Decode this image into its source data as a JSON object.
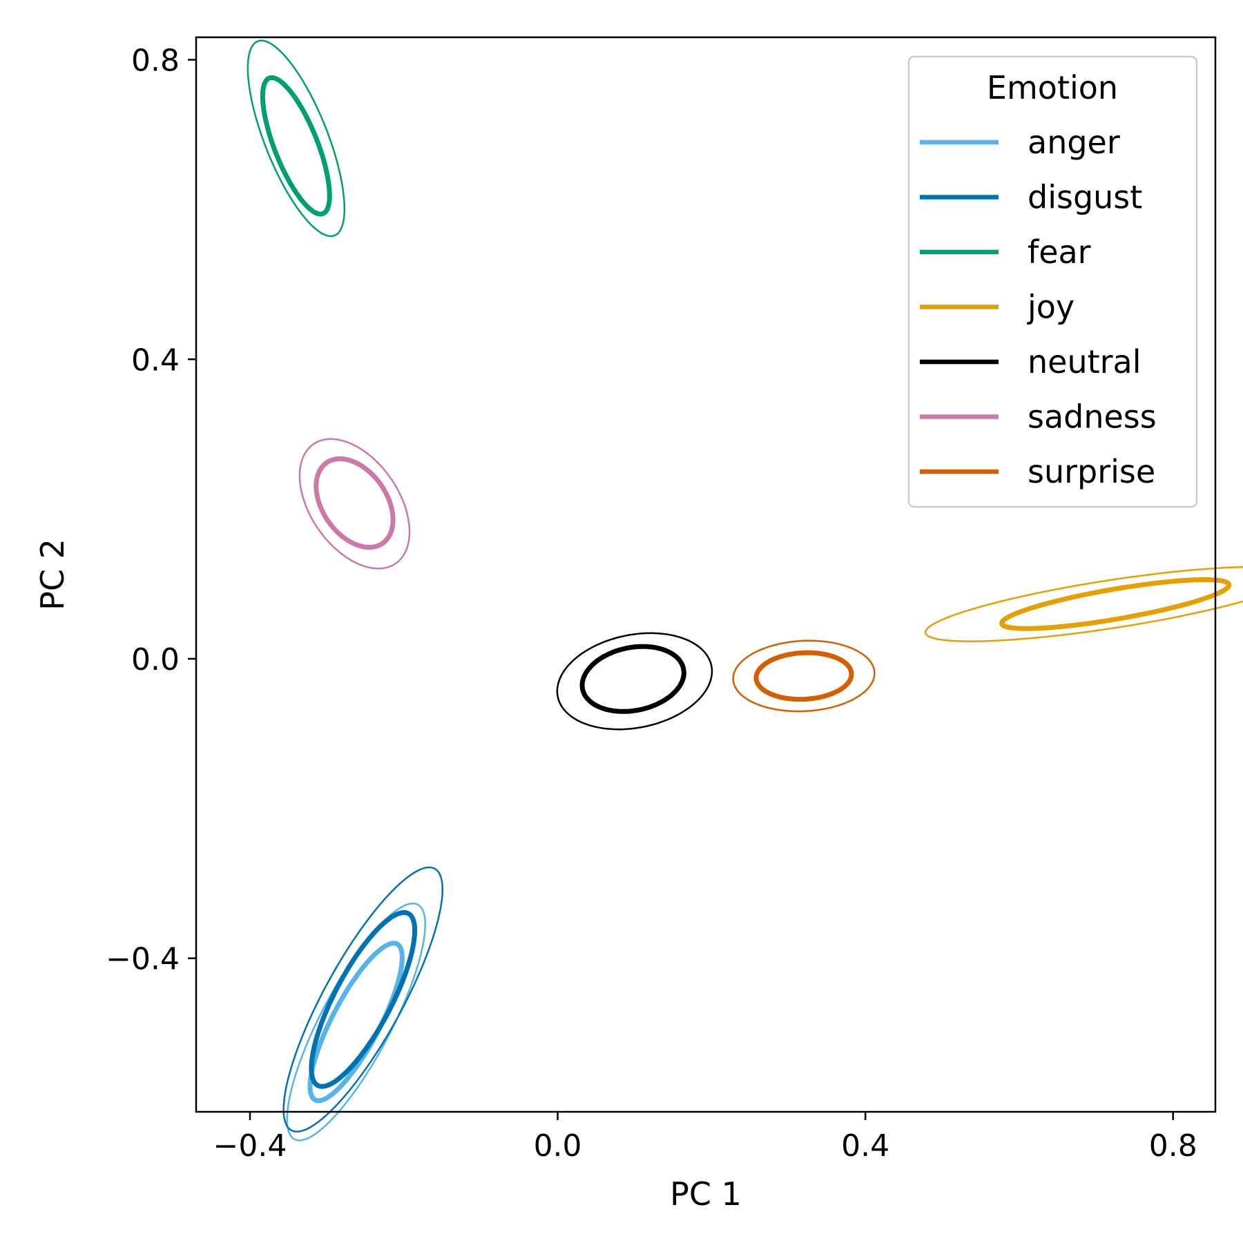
{
  "chart_data": {
    "type": "contour",
    "xlabel": "PC 1",
    "ylabel": "PC 2",
    "xlim": [
      -0.47,
      0.855
    ],
    "ylim": [
      -0.605,
      0.83
    ],
    "xticks": [
      -0.4,
      0.0,
      0.4,
      0.8
    ],
    "yticks": [
      -0.4,
      0.0,
      0.4,
      0.8
    ],
    "xtick_labels": [
      "−0.4",
      "0.0",
      "0.4",
      "0.8"
    ],
    "ytick_labels": [
      "−0.4",
      "0.0",
      "0.4",
      "0.8"
    ],
    "legend": {
      "title": "Emotion",
      "placement": "top-right",
      "entries": [
        {
          "label": "anger",
          "color": "#56B4E9"
        },
        {
          "label": "disgust",
          "color": "#0072B2"
        },
        {
          "label": "fear",
          "color": "#009E73"
        },
        {
          "label": "joy",
          "color": "#E69F00"
        },
        {
          "label": "neutral",
          "color": "#000000"
        },
        {
          "label": "sadness",
          "color": "#CC79A7"
        },
        {
          "label": "surprise",
          "color": "#D55E00"
        }
      ]
    },
    "contours": [
      {
        "emotion": "anger",
        "level": "outer",
        "center": [
          -0.262,
          -0.485
        ],
        "semi_major": 0.176,
        "semi_minor": 0.046,
        "angle_deg": 63
      },
      {
        "emotion": "anger",
        "level": "inner",
        "center": [
          -0.262,
          -0.485
        ],
        "semi_major": 0.117,
        "semi_minor": 0.031,
        "angle_deg": 63
      },
      {
        "emotion": "disgust",
        "level": "outer",
        "center": [
          -0.253,
          -0.455
        ],
        "semi_major": 0.198,
        "semi_minor": 0.051,
        "angle_deg": 62
      },
      {
        "emotion": "disgust",
        "level": "inner",
        "center": [
          -0.253,
          -0.455
        ],
        "semi_major": 0.129,
        "semi_minor": 0.037,
        "angle_deg": 63
      },
      {
        "emotion": "fear",
        "level": "outer",
        "center": [
          -0.34,
          0.695
        ],
        "semi_major": 0.139,
        "semi_minor": 0.041,
        "angle_deg": -69
      },
      {
        "emotion": "fear",
        "level": "inner",
        "center": [
          -0.34,
          0.685
        ],
        "semi_major": 0.097,
        "semi_minor": 0.028,
        "angle_deg": -69
      },
      {
        "emotion": "joy",
        "level": "outer",
        "center": [
          0.72,
          0.073
        ],
        "semi_major": 0.245,
        "semi_minor": 0.032,
        "angle_deg": 9
      },
      {
        "emotion": "joy",
        "level": "inner",
        "center": [
          0.725,
          0.073
        ],
        "semi_major": 0.15,
        "semi_minor": 0.02,
        "angle_deg": 10
      },
      {
        "emotion": "neutral",
        "level": "outer",
        "center": [
          0.1,
          -0.03
        ],
        "semi_major": 0.102,
        "semi_minor": 0.062,
        "angle_deg": 12
      },
      {
        "emotion": "neutral",
        "level": "inner",
        "center": [
          0.098,
          -0.027
        ],
        "semi_major": 0.067,
        "semi_minor": 0.042,
        "angle_deg": 12
      },
      {
        "emotion": "sadness",
        "level": "outer",
        "center": [
          -0.264,
          0.207
        ],
        "semi_major": 0.096,
        "semi_minor": 0.058,
        "angle_deg": -57
      },
      {
        "emotion": "sadness",
        "level": "inner",
        "center": [
          -0.264,
          0.208
        ],
        "semi_major": 0.065,
        "semi_minor": 0.042,
        "angle_deg": -57
      },
      {
        "emotion": "surprise",
        "level": "outer",
        "center": [
          0.32,
          -0.023
        ],
        "semi_major": 0.092,
        "semi_minor": 0.047,
        "angle_deg": 3
      },
      {
        "emotion": "surprise",
        "level": "inner",
        "center": [
          0.32,
          -0.023
        ],
        "semi_major": 0.062,
        "semi_minor": 0.031,
        "angle_deg": 3
      }
    ]
  }
}
